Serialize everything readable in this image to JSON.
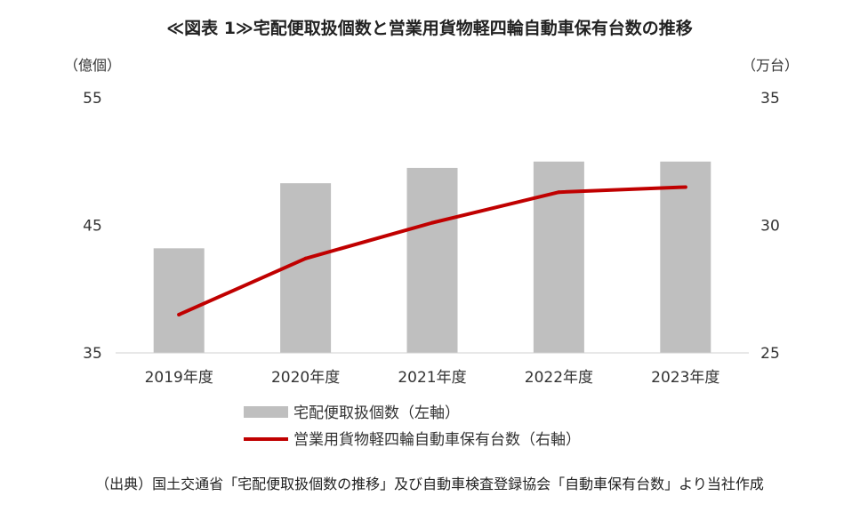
{
  "chart_data": {
    "type": "bar",
    "title": "≪図表 1≫宅配便取扱個数と営業用貨物軽四輪自動車保有台数の推移",
    "categories": [
      "2019年度",
      "2020年度",
      "2021年度",
      "2022年度",
      "2023年度"
    ],
    "series": [
      {
        "name": "宅配便取扱個数（左軸）",
        "type": "bar",
        "axis": "left",
        "color": "#bfbfbf",
        "values": [
          43.2,
          48.3,
          49.5,
          50.0,
          50.0
        ]
      },
      {
        "name": "営業用貨物軽四輪自動車保有台数（右軸）",
        "type": "line",
        "axis": "right",
        "color": "#c00000",
        "values": [
          26.5,
          28.7,
          30.1,
          31.3,
          31.5
        ]
      }
    ],
    "y_left": {
      "unit": "（億個）",
      "min": 35,
      "max": 55,
      "ticks": [
        "35",
        "45",
        "55"
      ]
    },
    "y_right": {
      "unit": "（万台）",
      "min": 25,
      "max": 35,
      "ticks": [
        "25",
        "30",
        "35"
      ]
    },
    "grid": false,
    "legend_position": "bottom-center",
    "source": "（出典）国土交通省「宅配便取扱個数の推移」及び自動車検査登録協会「自動車保有台数」より当社作成"
  }
}
